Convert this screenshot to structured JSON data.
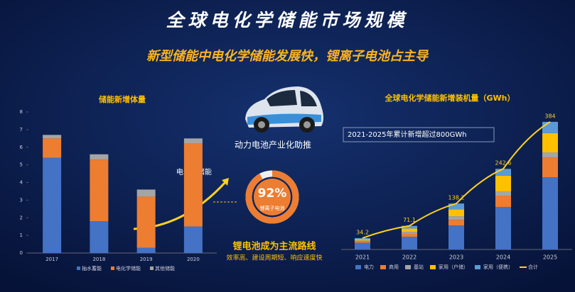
{
  "header": {
    "title": "全球电化学储能市场规模",
    "subtitle": "新型储能中电化学储能发展快，锂离子电池占主导"
  },
  "chart_data": [
    {
      "type": "bar",
      "stacked": true,
      "title": "储能新增体量",
      "categories": [
        "2017",
        "2018",
        "2019",
        "2020"
      ],
      "series": [
        {
          "name": "抽水蓄能",
          "color": "#4472c4",
          "values": [
            5.4,
            1.8,
            0.3,
            1.5
          ]
        },
        {
          "name": "电化学储能",
          "color": "#ed7d31",
          "values": [
            1.1,
            3.5,
            2.9,
            4.7
          ]
        },
        {
          "name": "其他储能",
          "color": "#a5a5a5",
          "values": [
            0.2,
            0.3,
            0.4,
            0.3
          ]
        }
      ],
      "ylim": [
        0,
        8
      ],
      "yticks": [
        0,
        1,
        2,
        3,
        4,
        5,
        6,
        7,
        8
      ],
      "annotation": "电化学储能",
      "legend": "bottom"
    },
    {
      "type": "bar",
      "stacked": true,
      "title": "全球电化学储能新增装机量（GWh）",
      "note": "2021-2025年累计新增超过800GWh",
      "categories": [
        "2021",
        "2022",
        "2023",
        "2024",
        "2025"
      ],
      "series": [
        {
          "name": "电力",
          "color": "#4472c4",
          "values": [
            20,
            38,
            72,
            128,
            217
          ]
        },
        {
          "name": "商用",
          "color": "#ed7d31",
          "values": [
            4,
            9,
            17,
            34,
            60
          ]
        },
        {
          "name": "基站",
          "color": "#a5a5a5",
          "values": [
            3,
            6,
            11,
            13,
            15
          ]
        },
        {
          "name": "家用（户储）",
          "color": "#ffc000",
          "values": [
            4,
            10,
            21,
            47,
            58
          ]
        },
        {
          "name": "家用（便携）",
          "color": "#5b9bd5",
          "values": [
            3.2,
            8.1,
            17.2,
            20.6,
            34
          ]
        },
        {
          "name": "合计",
          "color": "#ffd21f",
          "type": "line",
          "values": [
            34.2,
            71.1,
            138.2,
            242.6,
            384
          ]
        }
      ],
      "legend": "bottom"
    }
  ],
  "middle": {
    "caption": "动力电池产业化助推",
    "share": 92,
    "share_label": "92%",
    "share_name": "锂离子电池",
    "conclusion": "锂电池成为主流路线",
    "reasons": "效率高、建设周期短、响应速度快"
  }
}
